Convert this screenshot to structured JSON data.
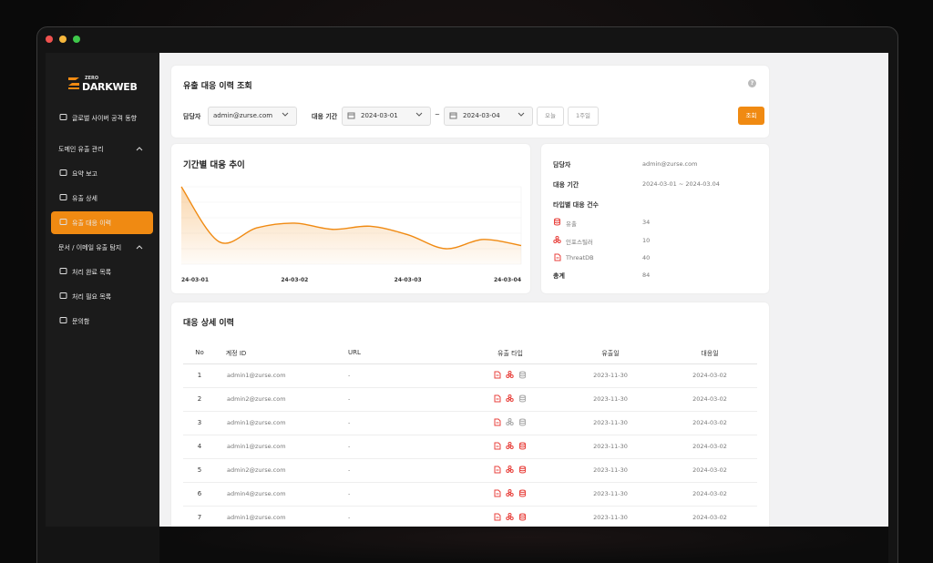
{
  "brand": {
    "top": "ZERO",
    "name": "DARKWEB"
  },
  "nav": {
    "top": "글로벌 사이버 공격 동향",
    "groups": [
      {
        "title": "도메인 유출 관리",
        "items": [
          "요약 보고",
          "유출 상세",
          "유출 대응 이력"
        ]
      },
      {
        "title": "문서 / 이메일 유출 탐지",
        "items": [
          "처리 완료 목록",
          "처리 필요 목록",
          "문의함"
        ]
      }
    ]
  },
  "search": {
    "title": "유출 대응 이력 조회",
    "help": "?",
    "manager_label": "담당자",
    "manager": "admin@zurse.com",
    "period_label": "대응 기간",
    "from": "2024-03-01",
    "sep": "~",
    "to": "2024-03-04",
    "today": "오늘",
    "week": "1주일",
    "submit": "조회"
  },
  "trend": {
    "title": "기간별 대응 추이",
    "categories": [
      "24-03-01",
      null,
      null,
      "24-03-02",
      null,
      null,
      "24-03-03",
      null,
      null,
      "24-03-04"
    ],
    "values": [
      100,
      29,
      47,
      53,
      45,
      49,
      38,
      20,
      32,
      24
    ],
    "ylim": [
      0,
      100
    ],
    "color": "#f08a12"
  },
  "summary": {
    "manager_label": "담당자",
    "manager": "admin@zurse.com",
    "period_label": "대응 기간",
    "period": "2024-03-01 ~ 2024-03.04",
    "types_label": "타입별 대응 건수",
    "types": [
      {
        "name": "유출",
        "count": 34
      },
      {
        "name": "인포스틸러",
        "count": 10
      },
      {
        "name": "ThreatDB",
        "count": 40
      }
    ],
    "total_label": "총계",
    "total": 84
  },
  "table": {
    "title": "대응 상세 이력",
    "headers": [
      "No",
      "계정 ID",
      "URL",
      "유출 타입",
      "유출일",
      "대응일"
    ],
    "rows": [
      {
        "no": 1,
        "account": "admin1@zurse.com",
        "url": "-",
        "types": [
          true,
          true,
          false
        ],
        "leaked": "2023-11-30",
        "responded": "2024-03-02"
      },
      {
        "no": 2,
        "account": "admin2@zurse.com",
        "url": "-",
        "types": [
          true,
          true,
          false
        ],
        "leaked": "2023-11-30",
        "responded": "2024-03-02"
      },
      {
        "no": 3,
        "account": "admin1@zurse.com",
        "url": "-",
        "types": [
          true,
          false,
          false
        ],
        "leaked": "2023-11-30",
        "responded": "2024-03-02"
      },
      {
        "no": 4,
        "account": "admin1@zurse.com",
        "url": "-",
        "types": [
          true,
          true,
          true
        ],
        "leaked": "2023-11-30",
        "responded": "2024-03-02"
      },
      {
        "no": 5,
        "account": "admin2@zurse.com",
        "url": "-",
        "types": [
          true,
          true,
          true
        ],
        "leaked": "2023-11-30",
        "responded": "2024-03-02"
      },
      {
        "no": 6,
        "account": "admin4@zurse.com",
        "url": "-",
        "types": [
          true,
          true,
          true
        ],
        "leaked": "2023-11-30",
        "responded": "2024-03-02"
      },
      {
        "no": 7,
        "account": "admin1@zurse.com",
        "url": "-",
        "types": [
          true,
          true,
          true
        ],
        "leaked": "2023-11-30",
        "responded": "2024-03-02"
      }
    ]
  }
}
